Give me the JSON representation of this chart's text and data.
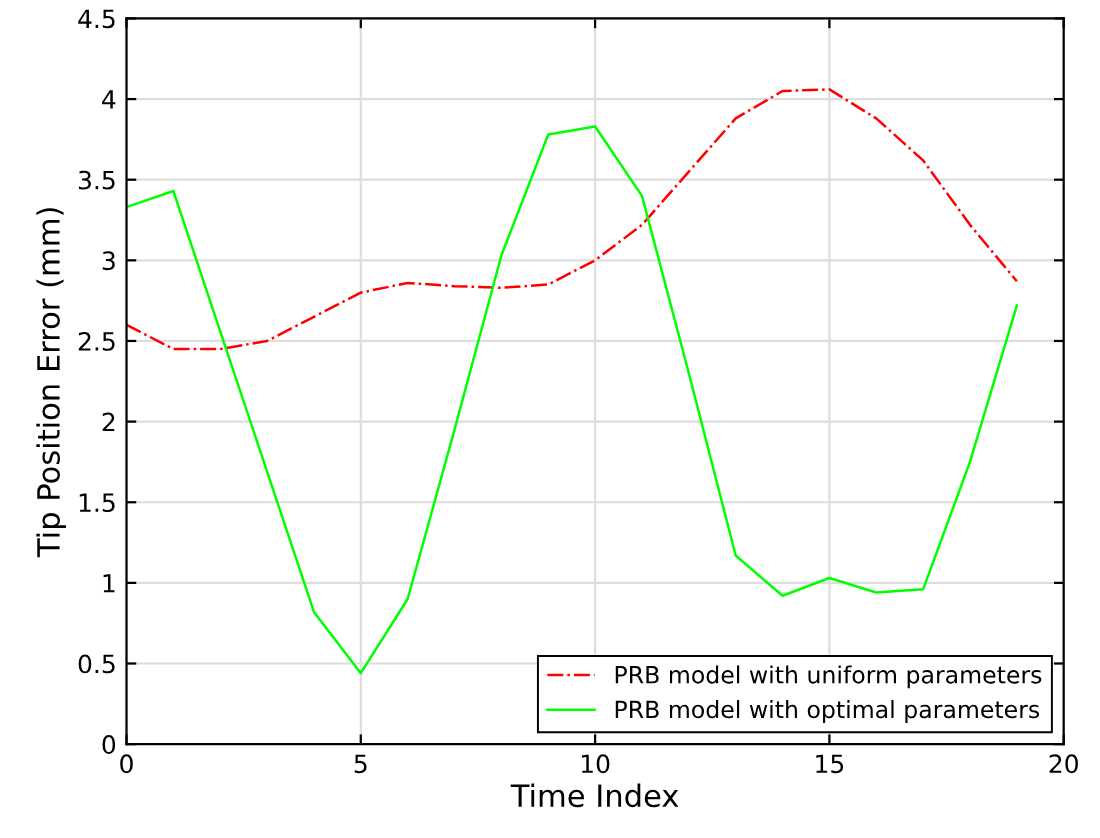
{
  "chart_data": {
    "type": "line",
    "xlabel": "Time Index",
    "ylabel": "Tip Position Error (mm)",
    "x": [
      0,
      1,
      2,
      3,
      4,
      5,
      6,
      7,
      8,
      9,
      10,
      11,
      12,
      13,
      14,
      15,
      16,
      17,
      18,
      19
    ],
    "series": [
      {
        "name": "PRB model with uniform parameters",
        "color": "#ff0000",
        "line_style": "dashdot",
        "values": [
          2.6,
          2.45,
          2.45,
          2.5,
          2.65,
          2.8,
          2.86,
          2.84,
          2.83,
          2.85,
          3.0,
          3.22,
          3.55,
          3.88,
          4.05,
          4.06,
          3.88,
          3.62,
          3.22,
          2.87
        ]
      },
      {
        "name": "PRB model with optimal parameters",
        "color": "#00ff00",
        "line_style": "solid",
        "values": [
          3.33,
          3.43,
          2.56,
          1.69,
          0.82,
          0.44,
          0.9,
          1.95,
          3.03,
          3.78,
          3.83,
          3.4,
          2.3,
          1.17,
          0.92,
          1.03,
          0.94,
          0.96,
          1.75,
          2.72
        ]
      }
    ],
    "xlim": [
      0,
      20
    ],
    "xticks": [
      0,
      5,
      10,
      15,
      20
    ],
    "ylim": [
      0,
      4.5
    ],
    "yticks": [
      0,
      0.5,
      1,
      1.5,
      2,
      2.5,
      3,
      3.5,
      4,
      4.5
    ],
    "grid": true,
    "legend": "bottom right",
    "marker": "none"
  }
}
